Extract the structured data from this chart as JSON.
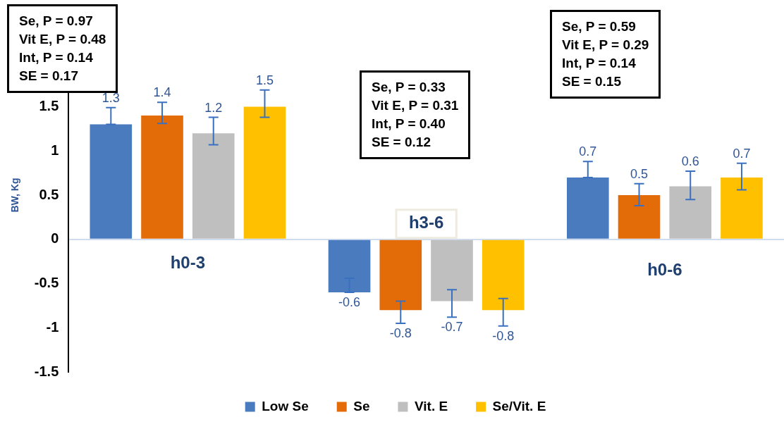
{
  "chart_data": {
    "type": "bar",
    "ylabel": "BW, Kg",
    "categories": [
      "h0-3",
      "h3-6",
      "h0-6"
    ],
    "series": [
      {
        "name": "Low Se",
        "color": "#4a7bbf",
        "values": [
          1.3,
          -0.6,
          0.7
        ],
        "errors": [
          [
            1.3,
            1.49
          ],
          [
            -0.6,
            -0.44
          ],
          [
            0.7,
            0.88
          ]
        ]
      },
      {
        "name": "Se",
        "color": "#e36c09",
        "values": [
          1.4,
          -0.8,
          0.5
        ],
        "errors": [
          [
            1.31,
            1.55
          ],
          [
            -0.95,
            -0.7
          ],
          [
            0.38,
            0.63
          ]
        ]
      },
      {
        "name": "Vit. E",
        "color": "#bfbfbf",
        "values": [
          1.2,
          -0.7,
          0.6
        ],
        "errors": [
          [
            1.07,
            1.38
          ],
          [
            -0.88,
            -0.57
          ],
          [
            0.45,
            0.77
          ]
        ]
      },
      {
        "name": "Se/Vit. E",
        "color": "#ffc000",
        "values": [
          1.5,
          -0.8,
          0.7
        ],
        "errors": [
          [
            1.38,
            1.69
          ],
          [
            -0.98,
            -0.67
          ],
          [
            0.56,
            0.86
          ]
        ]
      }
    ],
    "ylim": [
      -1.5,
      2.5
    ],
    "yticks": [
      -1.5,
      -1,
      -0.5,
      0,
      0.5,
      1,
      1.5
    ],
    "data_labels": true,
    "legend": "bottom",
    "annotations": [
      "Se, P = 0.97\nVit E, P = 0.48\nInt, P = 0.14\nSE = 0.17",
      "Se, P = 0.33\nVit E, P = 0.31\nInt, P = 0.40\nSE = 0.12",
      "Se, P = 0.59\nVit E, P = 0.29\nInt, P = 0.14\nSE = 0.15"
    ]
  }
}
